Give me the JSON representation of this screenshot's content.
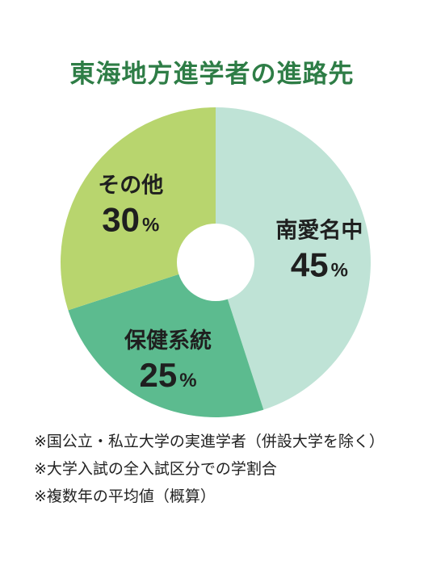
{
  "chart_data": {
    "type": "pie",
    "title": "東海地方進学者の進路先",
    "slices": [
      {
        "label": "南愛名中",
        "value": 45,
        "unit": "%",
        "color": "#bfe3d6"
      },
      {
        "label": "保健系統",
        "value": 25,
        "unit": "%",
        "color": "#5cbb8f"
      },
      {
        "label": "その他",
        "value": 30,
        "unit": "%",
        "color": "#b8d56e"
      }
    ]
  },
  "notes": [
    "※国公立・私立大学の実進学者（併設大学を除く）",
    "※大学入試の全入試区分での学割合",
    "※複数年の平均値（概算）"
  ]
}
